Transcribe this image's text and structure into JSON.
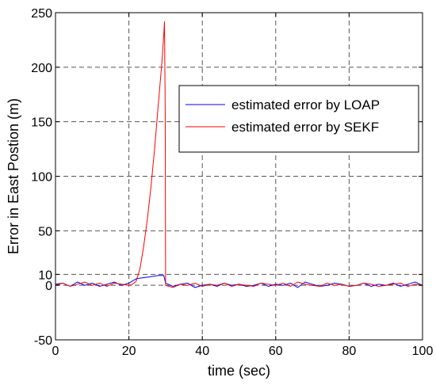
{
  "chart_data": {
    "type": "line",
    "title": "",
    "xlabel": "time (sec)",
    "ylabel": "Error in East Postion  (m)",
    "xlim": [
      0,
      100
    ],
    "ylim": [
      -50,
      250
    ],
    "xticks": [
      0,
      20,
      40,
      60,
      80,
      100
    ],
    "xtick_labels": [
      "0",
      "20",
      "40",
      "60",
      "80",
      "100"
    ],
    "yticks": [
      -50,
      0,
      10,
      50,
      100,
      150,
      200,
      250
    ],
    "ytick_labels": [
      "-50",
      "0",
      "10",
      "50",
      "100",
      "150",
      "200",
      "250"
    ],
    "grid": true,
    "legend_position": "upper-right",
    "colors": {
      "grid": "#555555",
      "axis": "#000000"
    },
    "series": [
      {
        "name": "estimated error by LOAP",
        "color": "#0000ff",
        "x": [
          0,
          2,
          4,
          6,
          8,
          10,
          12,
          14,
          16,
          18,
          20,
          21,
          22,
          24,
          26,
          28,
          29.5,
          30,
          32,
          34,
          36,
          38,
          40,
          42,
          44,
          46,
          48,
          50,
          52,
          54,
          56,
          58,
          60,
          62,
          64,
          66,
          68,
          70,
          72,
          74,
          76,
          78,
          80,
          82,
          84,
          86,
          88,
          90,
          92,
          94,
          96,
          98,
          100
        ],
        "y": [
          1,
          2,
          -1,
          3,
          0,
          2,
          -1,
          1,
          3,
          0,
          2,
          4,
          6,
          7,
          8,
          9,
          9,
          2,
          -1,
          1,
          2,
          -2,
          0,
          1,
          -1,
          2,
          0,
          1,
          -1,
          0,
          2,
          -1,
          1,
          0,
          2,
          -2,
          3,
          1,
          -1,
          0,
          2,
          1,
          -1,
          0,
          2,
          -1,
          1,
          0,
          2,
          -1,
          1,
          3,
          0
        ]
      },
      {
        "name": "estimated error by  SEKF",
        "color": "#ff0000",
        "x": [
          0,
          2,
          4,
          6,
          8,
          10,
          12,
          14,
          16,
          18,
          20,
          21,
          22,
          23,
          24,
          25,
          26,
          27,
          28,
          29,
          29.5,
          29.7,
          29.9,
          30,
          32,
          34,
          36,
          38,
          40,
          42,
          44,
          46,
          48,
          50,
          52,
          54,
          56,
          58,
          60,
          62,
          64,
          66,
          68,
          70,
          72,
          74,
          76,
          78,
          80,
          82,
          84,
          86,
          88,
          90,
          92,
          94,
          96,
          98,
          100
        ],
        "y": [
          0,
          2,
          -1,
          1,
          3,
          0,
          2,
          -1,
          2,
          1,
          0,
          1,
          4,
          15,
          35,
          60,
          90,
          125,
          165,
          205,
          230,
          242,
          160,
          0,
          -2,
          1,
          0,
          2,
          -1,
          1,
          0,
          2,
          -1,
          1,
          0,
          -1,
          2,
          1,
          0,
          2,
          -1,
          3,
          1,
          0,
          -1,
          2,
          0,
          1,
          -1,
          0,
          2,
          1,
          -1,
          0,
          1,
          2,
          -1,
          1,
          0
        ]
      }
    ]
  }
}
